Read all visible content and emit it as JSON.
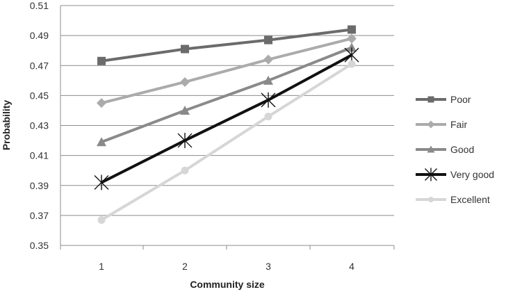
{
  "chart_data": {
    "type": "line",
    "title": "",
    "xlabel": "Community size",
    "ylabel": "Probability",
    "x": [
      1,
      2,
      3,
      4
    ],
    "x_tick_labels": [
      "1",
      "2",
      "3",
      "4"
    ],
    "ylim": [
      0.35,
      0.51
    ],
    "y_ticks": [
      0.35,
      0.37,
      0.39,
      0.41,
      0.43,
      0.45,
      0.47,
      0.49,
      0.51
    ],
    "y_tick_labels": [
      "0.35",
      "0.37",
      "0.39",
      "0.41",
      "0.43",
      "0.45",
      "0.47",
      "0.49",
      "0.51"
    ],
    "grid": true,
    "legend_position": "right",
    "series": [
      {
        "name": "Poor",
        "marker": "square",
        "color": "#6b6b6b",
        "values": [
          0.473,
          0.481,
          0.487,
          0.494
        ]
      },
      {
        "name": "Fair",
        "marker": "diamond",
        "color": "#ababab",
        "values": [
          0.445,
          0.459,
          0.474,
          0.488
        ]
      },
      {
        "name": "Good",
        "marker": "triangle",
        "color": "#8a8a8a",
        "values": [
          0.419,
          0.44,
          0.46,
          0.482
        ]
      },
      {
        "name": "Very good",
        "marker": "star",
        "color": "#111111",
        "values": [
          0.392,
          0.42,
          0.447,
          0.477
        ]
      },
      {
        "name": "Excellent",
        "marker": "circle",
        "color": "#d6d6d6",
        "values": [
          0.367,
          0.4,
          0.436,
          0.471
        ]
      }
    ]
  }
}
